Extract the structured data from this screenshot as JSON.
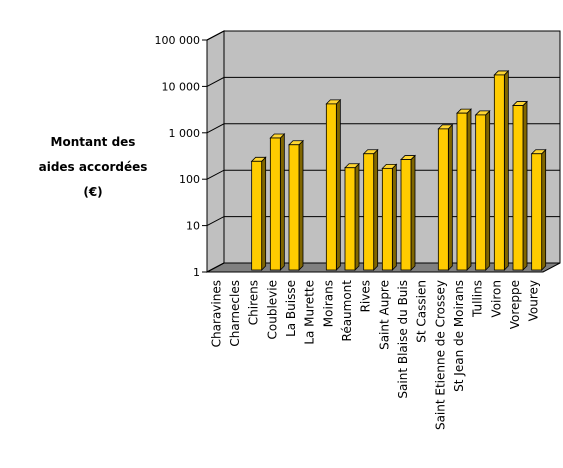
{
  "chart_data": {
    "type": "bar",
    "title": "",
    "xlabel": "",
    "ylabel_lines": [
      "Montant des",
      "aides accordées",
      "(€)"
    ],
    "y_scale": "log",
    "ylim": [
      1,
      100000
    ],
    "y_ticks": [
      1,
      10,
      100,
      1000,
      10000,
      100000
    ],
    "y_tick_labels": [
      "1",
      "10",
      "100",
      "1 000",
      "10 000",
      "100 000"
    ],
    "grid": true,
    "legend": "none",
    "categories": [
      "Charavines",
      "Charnecles",
      "Chirens",
      "Coublevie",
      "La Buisse",
      "La Murette",
      "Moirans",
      "Réaumont",
      "Rives",
      "Saint Aupre",
      "Saint Blaise du Buis",
      "St Cassien",
      "Saint Etienne de Crossey",
      "St Jean de Moirans",
      "Tullins",
      "Voiron",
      "Voreppe",
      "Vourey"
    ],
    "values": [
      null,
      null,
      220,
      700,
      500,
      null,
      3800,
      160,
      320,
      155,
      240,
      null,
      1100,
      2400,
      2200,
      16000,
      3500,
      320
    ],
    "colors": {
      "bar_front": "#ffcc00",
      "bar_side": "#806600",
      "bar_top": "#ffd633",
      "wall": "#c0c0c0",
      "floor": "#808080",
      "grid": "#000000"
    }
  }
}
